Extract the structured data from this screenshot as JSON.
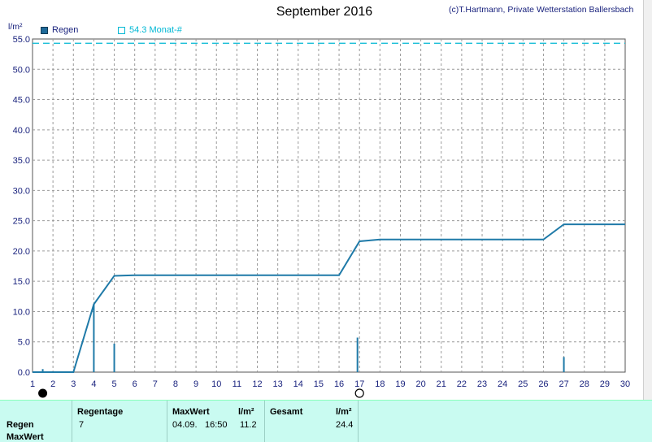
{
  "header": {
    "title": "September 2016",
    "credit": "(c)T.Hartmann, Private Wetterstation Ballersbach",
    "unit": "l/m²"
  },
  "legend": {
    "regen_label": "Regen",
    "avg_label": "54.3 Monat-#"
  },
  "colors": {
    "series": "#1f7aa8",
    "avg_line": "#00b8d4",
    "grid": "#9a9a9a",
    "axis_text": "#1a237e",
    "panel_bg": "#c9fbf1"
  },
  "chart_data": {
    "type": "line",
    "title": "September 2016",
    "ylabel": "l/m²",
    "ylim": [
      0,
      55
    ],
    "xlim": [
      1,
      30
    ],
    "yticks": [
      0,
      5,
      10,
      15,
      20,
      25,
      30,
      35,
      40,
      45,
      50,
      55
    ],
    "xticks": [
      1,
      2,
      3,
      4,
      5,
      6,
      7,
      8,
      9,
      10,
      11,
      12,
      13,
      14,
      15,
      16,
      17,
      18,
      19,
      20,
      21,
      22,
      23,
      24,
      25,
      26,
      27,
      28,
      29,
      30
    ],
    "grid": true,
    "cumulative": {
      "name": "Regen",
      "x": [
        1,
        3,
        4,
        5,
        6,
        16,
        17,
        18,
        26,
        27,
        30
      ],
      "y": [
        0,
        0,
        11.2,
        15.9,
        16.0,
        16.0,
        21.6,
        21.9,
        21.9,
        24.4,
        24.4
      ]
    },
    "daily_bars": {
      "x": [
        1.5,
        4,
        5,
        16.9,
        27
      ],
      "y": [
        0.5,
        11.2,
        4.7,
        5.7,
        2.5
      ]
    },
    "reference_line": {
      "name": "54.3 Monat-#",
      "y": 54.3
    },
    "moon_markers": [
      {
        "x": 1.5,
        "phase": "new"
      },
      {
        "x": 17,
        "phase": "full"
      }
    ]
  },
  "summary": {
    "row_labels": [
      "Regen",
      "MaxWert"
    ],
    "regentage_label": "Regentage",
    "regentage_value": "7",
    "maxwert_label": "MaxWert",
    "maxwert_date": "04.09.",
    "maxwert_time": "16:50",
    "maxwert_unit": "l/m²",
    "maxwert_value": "11.2",
    "gesamt_label": "Gesamt",
    "gesamt_unit": "l/m²",
    "gesamt_value": "24.4"
  }
}
